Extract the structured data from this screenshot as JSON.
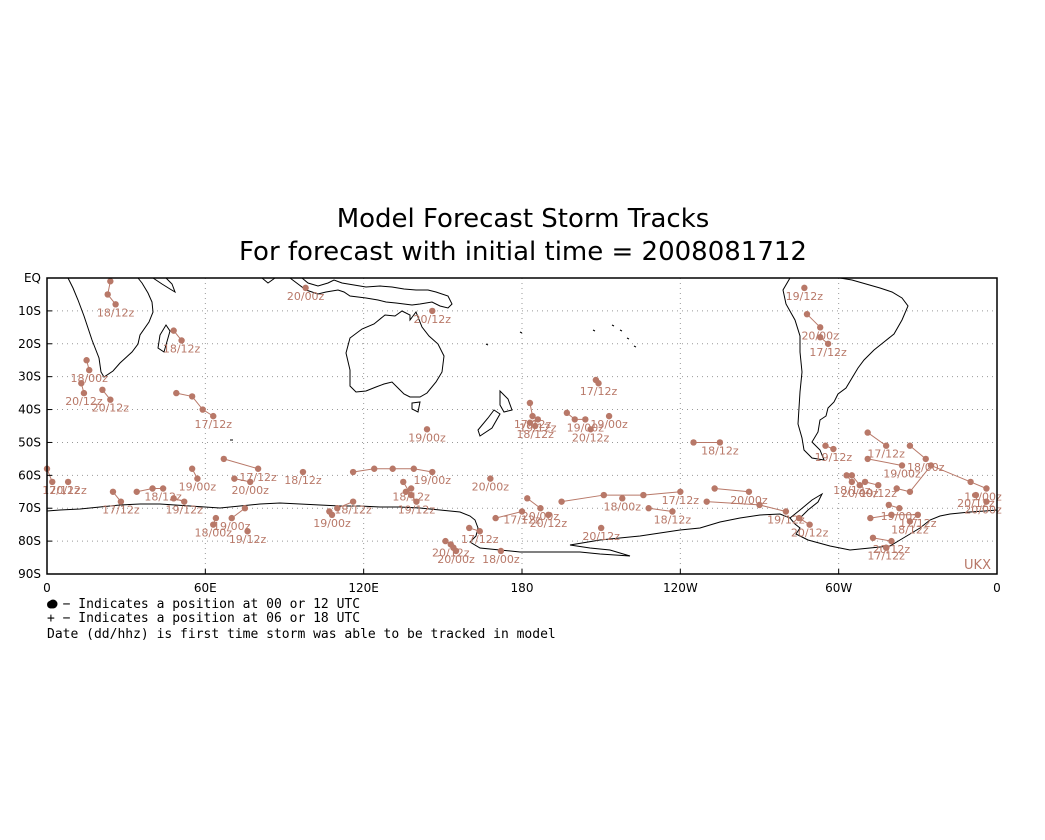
{
  "chart_data": {
    "type": "scatter",
    "title": "Model Forecast Storm Tracks",
    "subtitle": "For forecast with initial time = 2008081712",
    "model_tag": "UKX",
    "x_ticks": [
      "0",
      "60E",
      "120E",
      "180",
      "120W",
      "60W",
      "0"
    ],
    "x_tick_lons": [
      0,
      60,
      120,
      180,
      240,
      300,
      360
    ],
    "y_ticks": [
      "EQ",
      "10S",
      "20S",
      "30S",
      "40S",
      "50S",
      "60S",
      "70S",
      "80S",
      "90S"
    ],
    "y_tick_lats": [
      0,
      -10,
      -20,
      -30,
      -40,
      -50,
      -60,
      -70,
      -80,
      -90
    ],
    "xlim": [
      0,
      360
    ],
    "ylim": [
      -90,
      0
    ],
    "grid": true,
    "track_color": "#b87868",
    "legend": [
      "● − Indicates a position at 00 or 12 UTC",
      "+ − Indicates a position at 06 or 18 UTC",
      "Date (dd/hhz) is first time storm was able to be tracked in model"
    ],
    "tracks": [
      {
        "label": "18/12z",
        "points": [
          [
            24,
            -1
          ],
          [
            23,
            -5
          ],
          [
            26,
            -8
          ]
        ]
      },
      {
        "label": "18/00z",
        "points": [
          [
            15,
            -25
          ],
          [
            16,
            -28
          ]
        ]
      },
      {
        "label": "20/12z",
        "points": [
          [
            13,
            -32
          ],
          [
            14,
            -35
          ]
        ]
      },
      {
        "label": "20/12z",
        "points": [
          [
            21,
            -34
          ],
          [
            24,
            -37
          ]
        ]
      },
      {
        "label": "18/12z",
        "points": [
          [
            48,
            -16
          ],
          [
            51,
            -19
          ]
        ]
      },
      {
        "label": "17/12z",
        "points": [
          [
            49,
            -35
          ],
          [
            55,
            -36
          ],
          [
            59,
            -40
          ],
          [
            63,
            -42
          ]
        ]
      },
      {
        "label": "17/12z",
        "points": [
          [
            0,
            -58
          ],
          [
            2,
            -62
          ]
        ]
      },
      {
        "label": "20/12z",
        "points": [
          [
            8,
            -62
          ]
        ]
      },
      {
        "label": "17/12z",
        "points": [
          [
            25,
            -65
          ],
          [
            28,
            -68
          ]
        ]
      },
      {
        "label": "19/00z",
        "points": [
          [
            55,
            -58
          ],
          [
            57,
            -61
          ]
        ]
      },
      {
        "label": "17/12z",
        "points": [
          [
            67,
            -55
          ],
          [
            80,
            -58
          ]
        ]
      },
      {
        "label": "20/00z",
        "points": [
          [
            71,
            -61
          ],
          [
            77,
            -62
          ]
        ]
      },
      {
        "label": "18/12z",
        "points": [
          [
            34,
            -65
          ],
          [
            40,
            -64
          ],
          [
            44,
            -64
          ]
        ]
      },
      {
        "label": "19/12z",
        "points": [
          [
            48,
            -67
          ],
          [
            52,
            -68
          ]
        ]
      },
      {
        "label": "19/00z",
        "points": [
          [
            75,
            -70
          ],
          [
            70,
            -73
          ]
        ]
      },
      {
        "label": "18/00z",
        "points": [
          [
            64,
            -73
          ],
          [
            63,
            -75
          ]
        ]
      },
      {
        "label": "19/12z",
        "points": [
          [
            76,
            -77
          ]
        ]
      },
      {
        "label": "18/12z",
        "points": [
          [
            97,
            -59
          ]
        ]
      },
      {
        "label": "19/00z",
        "points": [
          [
            116,
            -59
          ],
          [
            124,
            -58
          ],
          [
            131,
            -58
          ],
          [
            139,
            -58
          ],
          [
            146,
            -59
          ]
        ]
      },
      {
        "label": "18/12z",
        "points": [
          [
            110,
            -70
          ],
          [
            116,
            -68
          ]
        ]
      },
      {
        "label": "19/00z",
        "points": [
          [
            107,
            -71
          ],
          [
            108,
            -72
          ]
        ]
      },
      {
        "label": "19/12z",
        "points": [
          [
            135,
            -62
          ],
          [
            138,
            -66
          ],
          [
            140,
            -68
          ]
        ]
      },
      {
        "label": "18/12z",
        "points": [
          [
            136,
            -65
          ],
          [
            138,
            -64
          ]
        ]
      },
      {
        "label": "20/00z",
        "points": [
          [
            98,
            -3
          ]
        ]
      },
      {
        "label": "20/12z",
        "points": [
          [
            146,
            -10
          ]
        ]
      },
      {
        "label": "19/00z",
        "points": [
          [
            144,
            -46
          ]
        ]
      },
      {
        "label": "17/12z",
        "points": [
          [
            183,
            -38
          ],
          [
            184,
            -42
          ]
        ]
      },
      {
        "label": "19/12z",
        "points": [
          [
            183,
            -44
          ],
          [
            186,
            -43
          ]
        ]
      },
      {
        "label": "18/12z",
        "points": [
          [
            185,
            -45
          ]
        ]
      },
      {
        "label": "19/00z",
        "points": [
          [
            197,
            -41
          ],
          [
            200,
            -43
          ],
          [
            204,
            -43
          ]
        ]
      },
      {
        "label": "19/00z",
        "points": [
          [
            213,
            -42
          ]
        ]
      },
      {
        "label": "20/12z",
        "points": [
          [
            206,
            -46
          ]
        ]
      },
      {
        "label": "17/12z",
        "points": [
          [
            208,
            -31
          ],
          [
            209,
            -32
          ]
        ]
      },
      {
        "label": "18/12z",
        "points": [
          [
            245,
            -50
          ],
          [
            255,
            -50
          ]
        ]
      },
      {
        "label": "20/00z",
        "points": [
          [
            168,
            -61
          ]
        ]
      },
      {
        "label": "20/00z",
        "points": [
          [
            182,
            -67
          ],
          [
            187,
            -70
          ]
        ]
      },
      {
        "label": "20/12z",
        "points": [
          [
            190,
            -72
          ]
        ]
      },
      {
        "label": "17/12z",
        "points": [
          [
            195,
            -68
          ],
          [
            211,
            -66
          ],
          [
            226,
            -66
          ],
          [
            240,
            -65
          ]
        ]
      },
      {
        "label": "18/00z",
        "points": [
          [
            218,
            -67
          ]
        ]
      },
      {
        "label": "18/12z",
        "points": [
          [
            228,
            -70
          ],
          [
            237,
            -71
          ]
        ]
      },
      {
        "label": "17/12z",
        "points": [
          [
            170,
            -73
          ],
          [
            180,
            -71
          ]
        ]
      },
      {
        "label": "20/12z",
        "points": [
          [
            210,
            -76
          ]
        ]
      },
      {
        "label": "20/00z",
        "points": [
          [
            253,
            -64
          ],
          [
            266,
            -65
          ]
        ]
      },
      {
        "label": "19/12z",
        "points": [
          [
            250,
            -68
          ],
          [
            270,
            -69
          ],
          [
            280,
            -71
          ]
        ]
      },
      {
        "label": "17/12z",
        "points": [
          [
            160,
            -76
          ],
          [
            164,
            -77
          ]
        ]
      },
      {
        "label": "20/12z",
        "points": [
          [
            151,
            -80
          ],
          [
            153,
            -81
          ]
        ]
      },
      {
        "label": "18/00z",
        "points": [
          [
            172,
            -83
          ]
        ]
      },
      {
        "label": "20/00z",
        "points": [
          [
            154,
            -82
          ],
          [
            155,
            -83
          ]
        ]
      },
      {
        "label": "19/12z",
        "points": [
          [
            287,
            -3
          ]
        ]
      },
      {
        "label": "20/00z",
        "points": [
          [
            288,
            -11
          ],
          [
            293,
            -15
          ]
        ]
      },
      {
        "label": "17/12z",
        "points": [
          [
            293,
            -18
          ],
          [
            296,
            -20
          ]
        ]
      },
      {
        "label": "19/12z",
        "points": [
          [
            295,
            -51
          ],
          [
            298,
            -52
          ]
        ]
      },
      {
        "label": "17/12z",
        "points": [
          [
            311,
            -47
          ],
          [
            318,
            -51
          ]
        ]
      },
      {
        "label": "18/00z",
        "points": [
          [
            327,
            -51
          ],
          [
            333,
            -55
          ]
        ]
      },
      {
        "label": "18/12z",
        "points": [
          [
            303,
            -60
          ],
          [
            305,
            -62
          ]
        ]
      },
      {
        "label": "19/00z",
        "points": [
          [
            311,
            -55
          ],
          [
            324,
            -57
          ]
        ]
      },
      {
        "label": "19/12z",
        "points": [
          [
            310,
            -62
          ],
          [
            315,
            -63
          ]
        ]
      },
      {
        "label": "20/00z",
        "points": [
          [
            305,
            -60
          ],
          [
            308,
            -63
          ]
        ]
      },
      {
        "label": "19/00z",
        "points": [
          [
            322,
            -64
          ],
          [
            327,
            -65
          ],
          [
            335,
            -57
          ],
          [
            350,
            -62
          ],
          [
            356,
            -64
          ]
        ]
      },
      {
        "label": "20/12z",
        "points": [
          [
            352,
            -66
          ]
        ]
      },
      {
        "label": "20/00z",
        "points": [
          [
            356,
            -68
          ]
        ]
      },
      {
        "label": "17/12z",
        "points": [
          [
            312,
            -73
          ],
          [
            320,
            -72
          ],
          [
            330,
            -72
          ]
        ]
      },
      {
        "label": "18/12z",
        "points": [
          [
            327,
            -74
          ]
        ]
      },
      {
        "label": "20/12z",
        "points": [
          [
            313,
            -79
          ],
          [
            320,
            -80
          ]
        ]
      },
      {
        "label": "17/12z",
        "points": [
          [
            318,
            -82
          ]
        ]
      },
      {
        "label": "20/12z",
        "points": [
          [
            285,
            -73
          ],
          [
            289,
            -75
          ]
        ]
      },
      {
        "label": "19/00z",
        "points": [
          [
            319,
            -69
          ],
          [
            323,
            -70
          ]
        ]
      }
    ]
  }
}
